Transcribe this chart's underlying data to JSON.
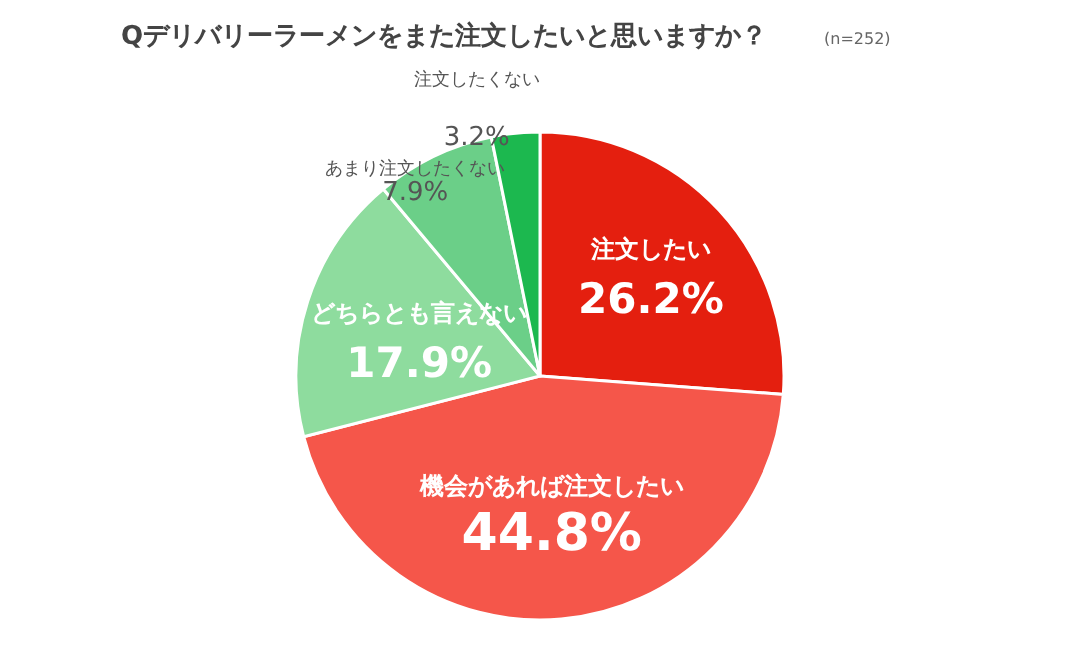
{
  "chart_data": {
    "type": "pie",
    "title": "Qデリバリーラーメンをまた注文したいと思いますか？",
    "annotations": [
      "(n=252)"
    ],
    "categories": [
      "注文したい",
      "機会があれば注文したい",
      "どちらとも言えない",
      "あまり注文したくない",
      "注文したくない"
    ],
    "values": [
      26.2,
      44.8,
      17.9,
      7.9,
      3.2
    ],
    "colors": [
      "#e41f0f",
      "#f5564a",
      "#8edc9e",
      "#6bcf88",
      "#1cb84f"
    ],
    "value_labels": [
      "26.2%",
      "44.8%",
      "17.9%",
      "7.9%",
      "3.2%"
    ]
  }
}
